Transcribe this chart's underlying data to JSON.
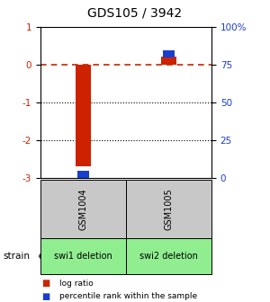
{
  "title": "GDS105 / 3942",
  "samples": [
    "GSM1004",
    "GSM1005"
  ],
  "log_ratios": [
    -2.7,
    0.22
  ],
  "percentile_ranks": [
    2.5,
    82.0
  ],
  "strains": [
    "swi1 deletion",
    "swi2 deletion"
  ],
  "ylim_left": [
    -3.0,
    1.0
  ],
  "ylim_right": [
    0,
    100
  ],
  "left_yticks": [
    1,
    0,
    -1,
    -2,
    -3
  ],
  "right_yticks": [
    100,
    75,
    50,
    25,
    0
  ],
  "right_ytick_labels": [
    "100%",
    "75",
    "50",
    "25",
    "0"
  ],
  "red_color": "#cc2200",
  "blue_color": "#1a3ecc",
  "gray_color": "#c8c8c8",
  "green_color": "#90ee90",
  "legend_red_label": "log ratio",
  "legend_blue_label": "percentile rank within the sample",
  "strain_label": "strain"
}
